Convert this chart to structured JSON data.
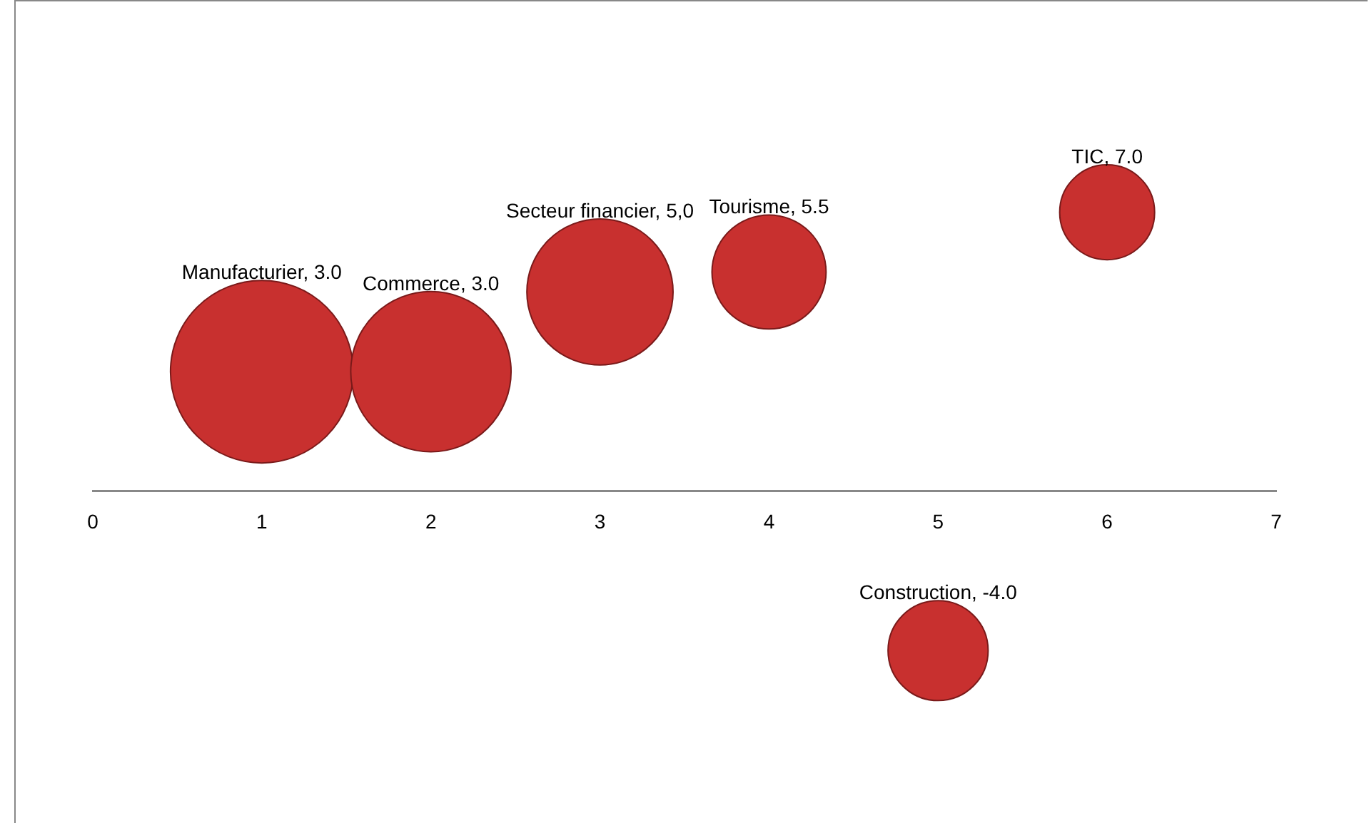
{
  "chart_data": {
    "type": "bubble",
    "x": [
      1,
      2,
      3,
      4,
      6,
      5
    ],
    "xlim": [
      0,
      7
    ],
    "xticks": [
      0,
      1,
      2,
      3,
      4,
      5,
      6,
      7
    ],
    "tick_labels": "x",
    "grid": false,
    "legend": false,
    "series": [
      {
        "color": "#c8302f",
        "values": [
          3.0,
          3.0,
          5.0,
          5.5,
          7.0,
          -4.0
        ],
        "sizes": [
          1,
          0.77,
          0.64,
          0.39,
          0.27,
          0.3
        ],
        "value_labels": [
          "Manufacturier, 3.0",
          "Commerce, 3.0",
          "Secteur financier, 5,0",
          "Tourisme, 5.5",
          "TIC, 7.0",
          "Construction, -4.0"
        ]
      }
    ]
  }
}
